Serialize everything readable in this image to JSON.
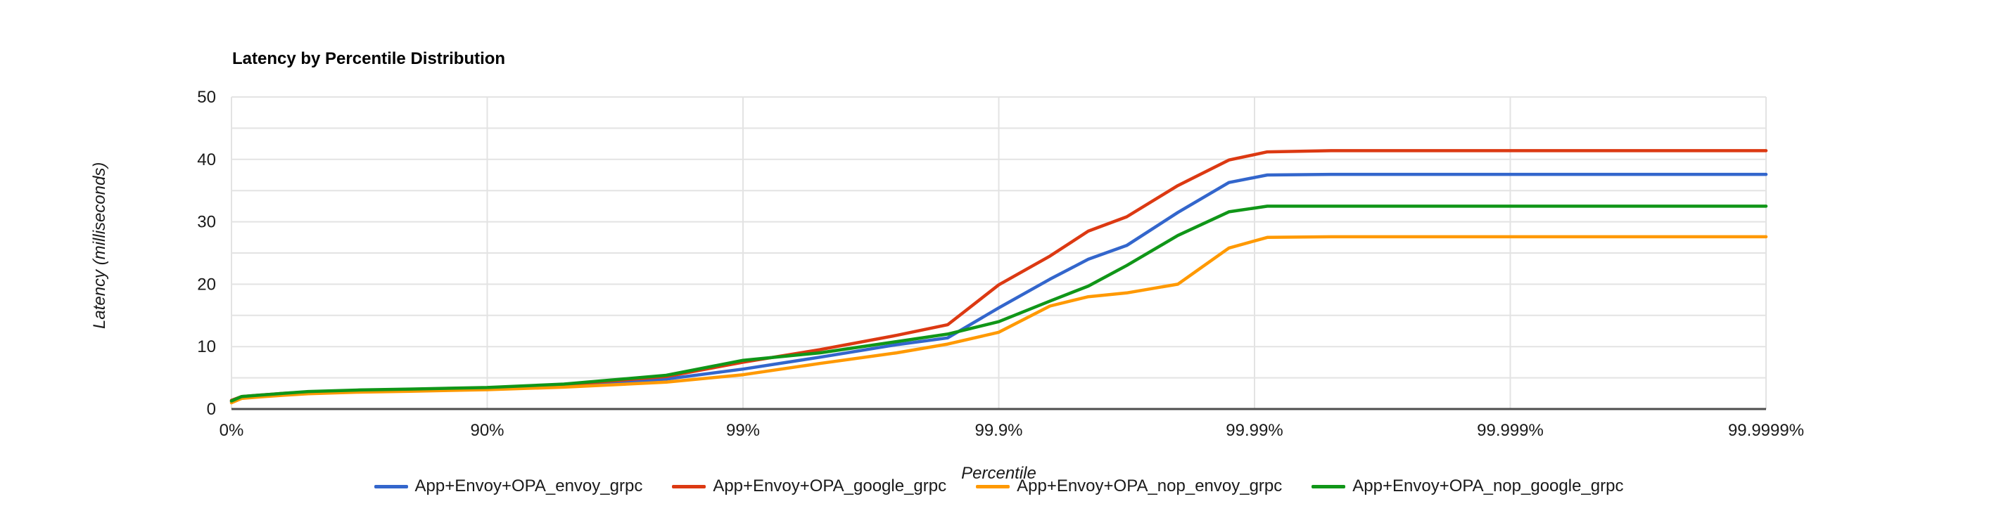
{
  "background_color": "#ffffff",
  "axis_text_color": "#1a1a1a",
  "gridline_color": "#e3e3e3",
  "baseline_color": "#4d4d4d",
  "chart_data": {
    "type": "line",
    "title": "Latency by Percentile Distribution",
    "xlabel": "Percentile",
    "ylabel": "Latency (milliseconds)",
    "x_scale": "logarithmic in (1 - percentile); one decade per major tick",
    "x_tick_labels": [
      "0%",
      "90%",
      "99%",
      "99.9%",
      "99.99%",
      "99.999%",
      "99.9999%"
    ],
    "x_tick_decades": [
      0,
      1,
      2,
      3,
      4,
      5,
      6
    ],
    "xlim_decades": [
      0,
      6
    ],
    "y_ticks": [
      0,
      10,
      20,
      30,
      40,
      50
    ],
    "y_gridline_step": 5,
    "ylim": [
      0,
      50
    ],
    "grid": true,
    "legend_position": "bottom",
    "x_decades": [
      0,
      0.04,
      0.1,
      0.2,
      0.3,
      0.5,
      0.7,
      1.0,
      1.3,
      1.7,
      2.0,
      2.3,
      2.6,
      2.8,
      3.0,
      3.2,
      3.35,
      3.5,
      3.7,
      3.9,
      4.05,
      4.3,
      5.0,
      6.0
    ],
    "series": [
      {
        "name": "App+Envoy+OPA_envoy_grpc",
        "color": "#3366CC",
        "values": [
          1.2,
          1.9,
          2.1,
          2.4,
          2.6,
          2.9,
          3.0,
          3.25,
          3.8,
          4.8,
          6.4,
          8.3,
          10.3,
          11.4,
          16.2,
          20.8,
          24.0,
          26.2,
          31.5,
          36.3,
          37.5,
          37.6,
          37.6,
          37.6
        ]
      },
      {
        "name": "App+Envoy+OPA_google_grpc",
        "color": "#DC3912",
        "values": [
          1.4,
          2.0,
          2.2,
          2.5,
          2.75,
          3.0,
          3.15,
          3.4,
          3.9,
          5.2,
          7.5,
          9.5,
          11.8,
          13.5,
          19.9,
          24.5,
          28.5,
          30.8,
          35.8,
          39.9,
          41.2,
          41.4,
          41.4,
          41.4
        ]
      },
      {
        "name": "App+Envoy+OPA_nop_envoy_grpc",
        "color": "#FF9900",
        "values": [
          1.0,
          1.7,
          1.9,
          2.2,
          2.45,
          2.7,
          2.85,
          3.1,
          3.5,
          4.3,
          5.5,
          7.3,
          9.0,
          10.4,
          12.3,
          16.5,
          18.0,
          18.6,
          20.0,
          25.8,
          27.5,
          27.6,
          27.6,
          27.6
        ]
      },
      {
        "name": "App+Envoy+OPA_nop_google_grpc",
        "color": "#109618",
        "values": [
          1.3,
          2.0,
          2.2,
          2.5,
          2.8,
          3.05,
          3.2,
          3.45,
          4.0,
          5.4,
          7.8,
          9.0,
          10.8,
          12.0,
          14.0,
          17.3,
          19.7,
          23.0,
          27.8,
          31.6,
          32.5,
          32.5,
          32.5,
          32.5
        ]
      }
    ]
  }
}
